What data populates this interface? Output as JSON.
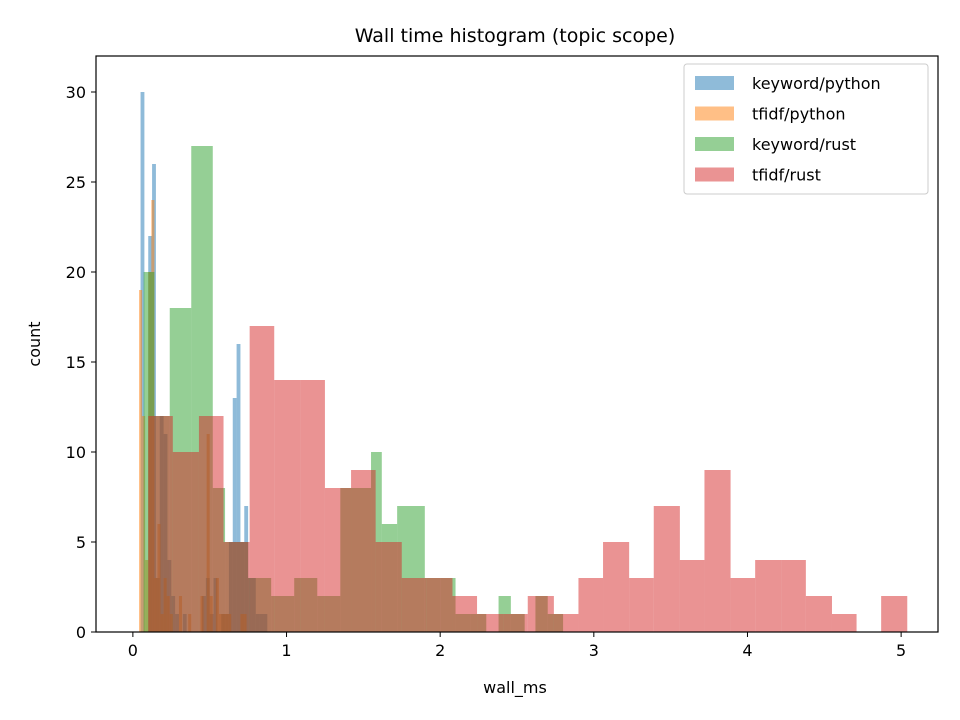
{
  "chart_data": {
    "type": "bar",
    "title": "Wall time histogram (topic scope)",
    "xlabel": "wall_ms",
    "ylabel": "count",
    "xlim": [
      -0.24,
      5.24
    ],
    "ylim": [
      0,
      32
    ],
    "xticks": [
      0,
      1,
      2,
      3,
      4,
      5
    ],
    "yticks": [
      0,
      5,
      10,
      15,
      20,
      25,
      30
    ],
    "legend_position": "top-right",
    "bar_opacity": 0.5,
    "series": [
      {
        "name": "keyword/python",
        "color": "#1f77b4",
        "bins": [
          [
            0.05,
            0.075,
            30
          ],
          [
            0.1,
            0.125,
            22
          ],
          [
            0.125,
            0.15,
            26
          ],
          [
            0.15,
            0.175,
            3
          ],
          [
            0.175,
            0.2,
            12
          ],
          [
            0.2,
            0.225,
            11
          ],
          [
            0.225,
            0.25,
            4
          ],
          [
            0.25,
            0.275,
            2
          ],
          [
            0.275,
            0.3,
            1
          ],
          [
            0.325,
            0.35,
            1
          ],
          [
            0.45,
            0.475,
            2
          ],
          [
            0.475,
            0.5,
            3
          ],
          [
            0.5,
            0.525,
            1
          ],
          [
            0.525,
            0.55,
            3
          ],
          [
            0.575,
            0.6,
            1
          ],
          [
            0.6,
            0.625,
            1
          ],
          [
            0.625,
            0.65,
            5
          ],
          [
            0.65,
            0.675,
            13
          ],
          [
            0.675,
            0.7,
            16
          ],
          [
            0.7,
            0.725,
            5
          ],
          [
            0.725,
            0.75,
            7
          ],
          [
            0.75,
            0.775,
            3
          ],
          [
            0.775,
            0.8,
            3
          ],
          [
            0.8,
            0.825,
            1
          ],
          [
            0.825,
            0.85,
            1
          ],
          [
            0.85,
            0.875,
            1
          ]
        ]
      },
      {
        "name": "tfidf/python",
        "color": "#ff7f0e",
        "bins": [
          [
            0.04,
            0.06,
            19
          ],
          [
            0.06,
            0.08,
            12
          ],
          [
            0.08,
            0.1,
            4
          ],
          [
            0.1,
            0.12,
            20
          ],
          [
            0.12,
            0.14,
            24
          ],
          [
            0.14,
            0.16,
            3
          ],
          [
            0.16,
            0.18,
            6
          ],
          [
            0.18,
            0.2,
            1
          ],
          [
            0.2,
            0.22,
            3
          ],
          [
            0.22,
            0.24,
            2
          ],
          [
            0.24,
            0.26,
            1
          ],
          [
            0.3,
            0.32,
            2
          ],
          [
            0.36,
            0.38,
            1
          ],
          [
            0.44,
            0.46,
            2
          ],
          [
            0.48,
            0.5,
            11
          ],
          [
            0.5,
            0.52,
            2
          ],
          [
            0.54,
            0.56,
            3
          ],
          [
            0.56,
            0.58,
            1
          ],
          [
            0.58,
            0.6,
            1
          ],
          [
            0.6,
            0.62,
            1
          ],
          [
            0.62,
            0.64,
            1
          ],
          [
            0.7,
            0.72,
            1
          ],
          [
            0.72,
            0.74,
            1
          ]
        ]
      },
      {
        "name": "keyword/rust",
        "color": "#2ca02c",
        "bins": [
          [
            0.07,
            0.14,
            20
          ],
          [
            0.14,
            0.24,
            12
          ],
          [
            0.24,
            0.38,
            18
          ],
          [
            0.38,
            0.52,
            27
          ],
          [
            0.52,
            0.6,
            8
          ],
          [
            0.6,
            0.75,
            5
          ],
          [
            0.75,
            0.9,
            3
          ],
          [
            0.9,
            1.05,
            2
          ],
          [
            1.05,
            1.2,
            3
          ],
          [
            1.2,
            1.35,
            2
          ],
          [
            1.35,
            1.55,
            8
          ],
          [
            1.55,
            1.62,
            10
          ],
          [
            1.62,
            1.72,
            6
          ],
          [
            1.72,
            1.9,
            7
          ],
          [
            1.9,
            2.0,
            3
          ],
          [
            2.0,
            2.1,
            3
          ],
          [
            2.1,
            2.2,
            1
          ],
          [
            2.2,
            2.3,
            1
          ],
          [
            2.38,
            2.46,
            2
          ],
          [
            2.46,
            2.55,
            1
          ],
          [
            2.62,
            2.7,
            2
          ],
          [
            2.7,
            2.8,
            1
          ]
        ]
      },
      {
        "name": "tfidf/rust",
        "color": "#d62728",
        "bins": [
          [
            0.1,
            0.26,
            12
          ],
          [
            0.26,
            0.43,
            10
          ],
          [
            0.43,
            0.59,
            12
          ],
          [
            0.59,
            0.76,
            5
          ],
          [
            0.76,
            0.92,
            17
          ],
          [
            0.92,
            1.09,
            14
          ],
          [
            1.09,
            1.25,
            14
          ],
          [
            1.25,
            1.42,
            8
          ],
          [
            1.42,
            1.58,
            9
          ],
          [
            1.58,
            1.75,
            5
          ],
          [
            1.75,
            1.91,
            3
          ],
          [
            1.91,
            2.08,
            3
          ],
          [
            2.08,
            2.24,
            2
          ],
          [
            2.24,
            2.41,
            1
          ],
          [
            2.41,
            2.57,
            1
          ],
          [
            2.57,
            2.74,
            2
          ],
          [
            2.74,
            2.9,
            1
          ],
          [
            2.9,
            3.06,
            3
          ],
          [
            3.06,
            3.23,
            5
          ],
          [
            3.23,
            3.39,
            3
          ],
          [
            3.39,
            3.56,
            7
          ],
          [
            3.56,
            3.72,
            4
          ],
          [
            3.72,
            3.89,
            9
          ],
          [
            3.89,
            4.05,
            3
          ],
          [
            4.05,
            4.22,
            4
          ],
          [
            4.22,
            4.38,
            4
          ],
          [
            4.38,
            4.55,
            2
          ],
          [
            4.55,
            4.71,
            1
          ],
          [
            4.71,
            4.87,
            0
          ],
          [
            4.87,
            5.04,
            2
          ]
        ]
      }
    ]
  }
}
